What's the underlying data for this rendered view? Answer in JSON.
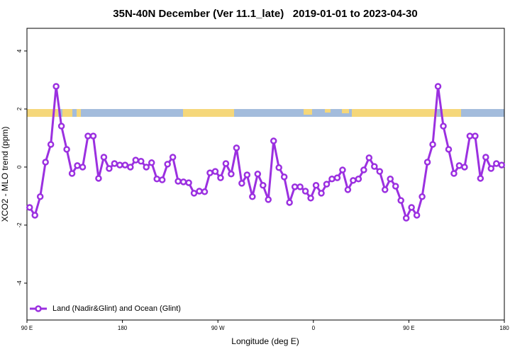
{
  "chart_data": {
    "type": "line",
    "title": "35N-40N December (Ver 11.1_late)   2019-01-01 to 2023-04-30",
    "xlabel": "Longitude (deg E)",
    "ylabel": "XCO2 - MLO trend (ppm)",
    "xlim": [
      90,
      540
    ],
    "xticks": [
      {
        "value": 90,
        "label": "90 E"
      },
      180,
      {
        "value": 270,
        "label": "90 W"
      },
      {
        "value": 360,
        "label": "0"
      },
      {
        "value": 450,
        "label": "90 E"
      },
      {
        "value": 540,
        "label": "180"
      }
    ],
    "ylim": [
      -5.27,
      4.78
    ],
    "yticks": [
      -4,
      -2,
      0,
      2,
      4
    ],
    "legend": "lower left",
    "x": [
      92.5,
      97.5,
      102.5,
      107.5,
      112.5,
      117.5,
      122.5,
      127.5,
      132.5,
      137.5,
      142.5,
      147.5,
      152.5,
      157.5,
      162.5,
      167.5,
      172.5,
      177.5,
      182.5,
      187.5,
      192.5,
      197.5,
      202.5,
      207.5,
      212.5,
      217.5,
      222.5,
      227.5,
      232.5,
      237.5,
      242.5,
      247.5,
      252.5,
      257.5,
      262.5,
      267.5,
      272.5,
      277.5,
      282.5,
      287.5,
      292.5,
      297.5,
      302.5,
      307.5,
      312.5,
      317.5,
      322.5,
      327.5,
      332.5,
      337.5,
      342.5,
      347.5,
      352.5,
      357.5,
      362.5,
      367.5,
      372.5,
      377.5,
      382.5,
      387.5,
      392.5,
      397.5,
      402.5,
      407.5,
      412.5,
      417.5,
      422.5,
      427.5,
      432.5,
      437.5,
      442.5,
      447.5,
      452.5,
      457.5,
      462.5,
      467.5,
      472.5,
      477.5,
      482.5,
      487.5,
      492.5,
      497.5,
      502.5,
      507.5,
      512.5,
      517.5,
      522.5,
      527.5,
      532.5,
      537.5
    ],
    "series": [
      {
        "name": "Land (Nadir&Glint) and Ocean (Glint)",
        "color": "#9b30e0",
        "values": [
          -1.39,
          -1.66,
          -1.02,
          0.17,
          0.78,
          2.78,
          1.41,
          0.61,
          -0.22,
          0.05,
          0.0,
          1.07,
          1.07,
          -0.39,
          0.34,
          -0.05,
          0.12,
          0.07,
          0.07,
          0.0,
          0.24,
          0.2,
          0.0,
          0.15,
          -0.41,
          -0.44,
          0.1,
          0.34,
          -0.49,
          -0.51,
          -0.54,
          -0.9,
          -0.83,
          -0.85,
          -0.2,
          -0.15,
          -0.37,
          0.12,
          -0.24,
          0.66,
          -0.56,
          -0.27,
          -1.02,
          -0.24,
          -0.63,
          -1.12,
          0.9,
          -0.02,
          -0.34,
          -1.22,
          -0.68,
          -0.68,
          -0.83,
          -1.07,
          -0.63,
          -0.9,
          -0.59,
          -0.41,
          -0.37,
          -0.1,
          -0.78,
          -0.46,
          -0.41,
          -0.1,
          0.32,
          0.02,
          -0.15,
          -0.78,
          -0.41,
          -0.66,
          -1.15,
          -1.76,
          -1.39,
          -1.66,
          -1.02,
          0.17,
          0.78,
          2.78,
          1.41,
          0.61,
          -0.22,
          0.05,
          0.0,
          1.07,
          1.07,
          -0.39,
          0.34,
          -0.05,
          0.12,
          0.07
        ]
      }
    ]
  }
}
